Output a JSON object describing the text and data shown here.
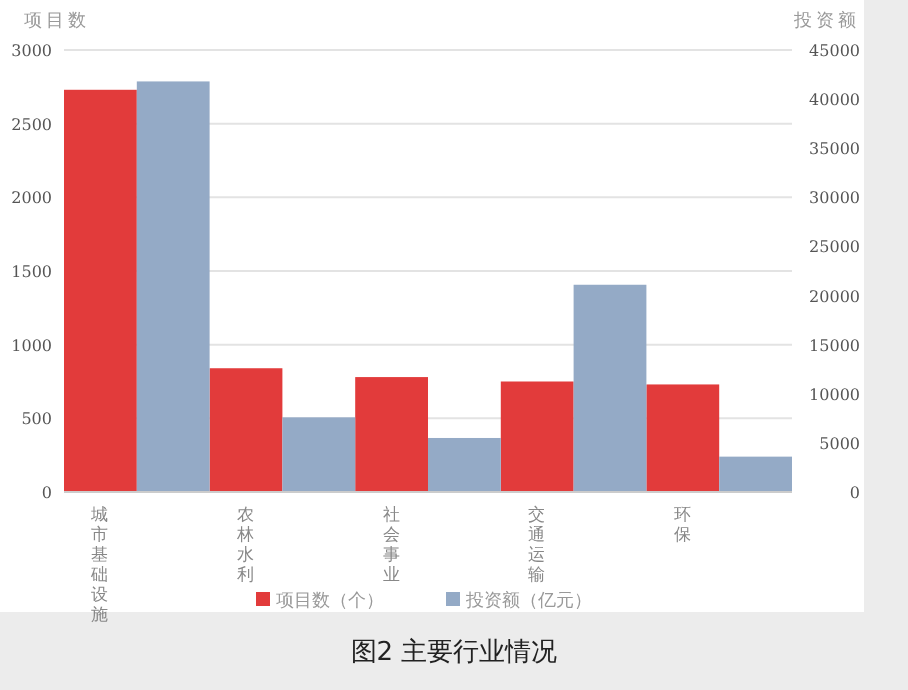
{
  "chart_data": {
    "type": "bar",
    "title": "图2 主要行业情况",
    "ylabel": "项目数",
    "y2label": "投资额",
    "categories": [
      "城市基础设施",
      "农林水利",
      "社会事业",
      "交通运输",
      "环保"
    ],
    "series": [
      {
        "name": "项目数（个）",
        "color": "#e23b3b",
        "values": [
          2730,
          840,
          780,
          750,
          730
        ]
      },
      {
        "name": "投资额（亿元）",
        "color": "#94aac6",
        "axis": "y2",
        "values": [
          41800,
          7600,
          5500,
          21100,
          3600
        ]
      }
    ],
    "ylim": [
      0,
      3000
    ],
    "yticks": [
      0,
      500,
      1000,
      1500,
      2000,
      2500,
      3000
    ],
    "y2lim": [
      0,
      45000
    ],
    "y2ticks": [
      0,
      5000,
      10000,
      15000,
      20000,
      25000,
      30000,
      35000,
      40000,
      45000
    ],
    "grid": "y",
    "legend": "bottom"
  }
}
